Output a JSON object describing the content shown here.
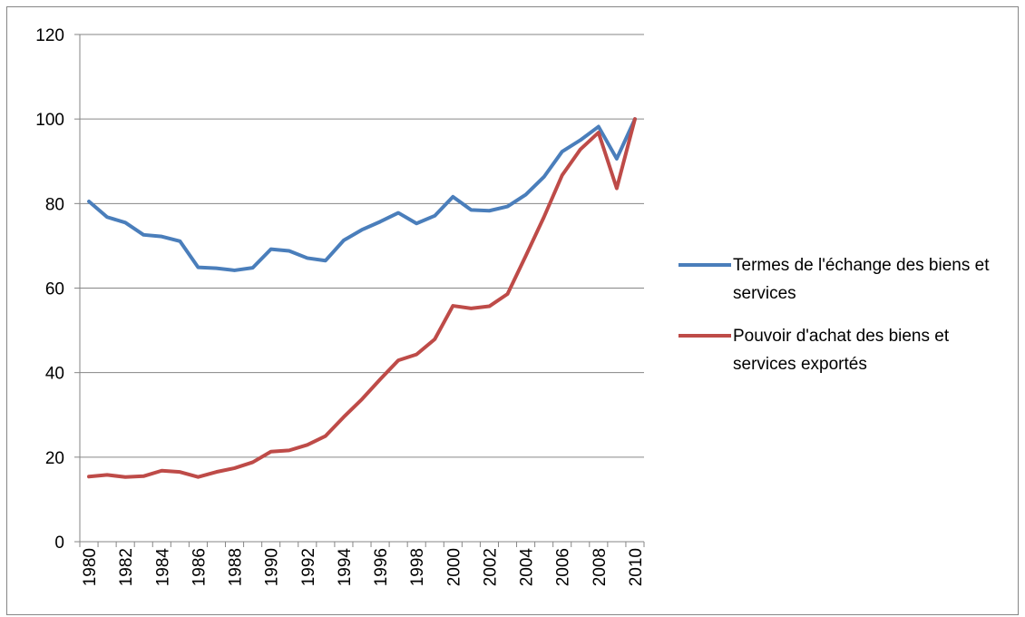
{
  "chart_data": {
    "type": "line",
    "categories": [
      "1980",
      null,
      "1982",
      null,
      "1984",
      null,
      "1986",
      null,
      "1988",
      null,
      "1990",
      null,
      "1992",
      null,
      "1994",
      null,
      "1996",
      null,
      "1998",
      null,
      "2000",
      null,
      "2002",
      null,
      "2004",
      null,
      "2006",
      null,
      "2008",
      null,
      "2010"
    ],
    "series": [
      {
        "name": "Termes de l'échange des biens et services",
        "color": "#4a7ebb",
        "values": [
          80.5,
          76.8,
          75.5,
          72.6,
          72.2,
          71.1,
          64.9,
          64.7,
          64.2,
          64.8,
          69.2,
          68.8,
          67.1,
          66.5,
          71.3,
          73.8,
          75.7,
          77.8,
          75.3,
          77.1,
          81.6,
          78.5,
          78.3,
          79.3,
          82.1,
          86.3,
          92.3,
          95.0,
          98.2,
          90.6,
          100
        ]
      },
      {
        "name": "Pouvoir d'achat des biens et services exportés",
        "color": "#be4b48",
        "values": [
          15.4,
          15.8,
          15.3,
          15.5,
          16.8,
          16.5,
          15.3,
          16.5,
          17.4,
          18.8,
          21.3,
          21.6,
          22.9,
          25.0,
          29.5,
          33.7,
          38.4,
          42.9,
          44.3,
          47.9,
          55.8,
          55.2,
          55.7,
          58.6,
          67.6,
          76.8,
          86.7,
          92.8,
          96.8,
          83.6,
          100
        ]
      }
    ],
    "ylim": [
      0,
      120
    ],
    "yticks": [
      0,
      20,
      40,
      60,
      80,
      100,
      120
    ],
    "grid": true,
    "legend": "right"
  }
}
